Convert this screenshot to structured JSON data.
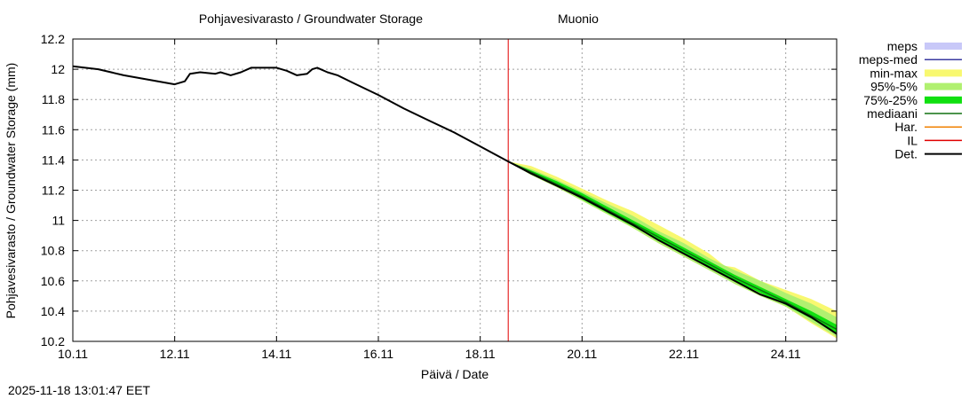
{
  "chart_data": {
    "type": "line",
    "title": "Pohjavesivarasto / Groundwater Storage",
    "location": "Muonio",
    "xlabel": "Päivä / Date",
    "ylabel": "Pohjavesivarasto / Groundwater Storage (mm)",
    "timestamp": "2025-11-18 13:01:47 EET",
    "xlim": [
      10.0,
      25.0
    ],
    "ylim": [
      10.2,
      12.2
    ],
    "x_ticks": [
      {
        "value": 10.0,
        "label": "10.11"
      },
      {
        "value": 12.0,
        "label": "12.11"
      },
      {
        "value": 14.0,
        "label": "14.11"
      },
      {
        "value": 16.0,
        "label": "16.11"
      },
      {
        "value": 18.0,
        "label": "18.11"
      },
      {
        "value": 20.0,
        "label": "20.11"
      },
      {
        "value": 22.0,
        "label": "22.11"
      },
      {
        "value": 24.0,
        "label": "24.11"
      }
    ],
    "y_ticks": [
      {
        "value": 10.2,
        "label": "10.2"
      },
      {
        "value": 10.4,
        "label": "10.4"
      },
      {
        "value": 10.6,
        "label": "10.6"
      },
      {
        "value": 10.8,
        "label": "10.8"
      },
      {
        "value": 11.0,
        "label": "11"
      },
      {
        "value": 11.2,
        "label": "11.2"
      },
      {
        "value": 11.4,
        "label": "11.4"
      },
      {
        "value": 11.6,
        "label": "11.6"
      },
      {
        "value": 11.8,
        "label": "11.8"
      },
      {
        "value": 12.0,
        "label": "12"
      },
      {
        "value": 12.2,
        "label": "12.2"
      }
    ],
    "grid": true,
    "legend_position": "right",
    "legend": [
      {
        "label": "meps",
        "color": "#c8c8f8",
        "style": "band"
      },
      {
        "label": "meps-med",
        "color": "#3a3aa0",
        "style": "line"
      },
      {
        "label": "min-max",
        "color": "#f8f870",
        "style": "band"
      },
      {
        "label": "95%-5%",
        "color": "#b0f070",
        "style": "band"
      },
      {
        "label": "75%-25%",
        "color": "#10e010",
        "style": "band"
      },
      {
        "label": "mediaani",
        "color": "#107010",
        "style": "line"
      },
      {
        "label": "Har.",
        "color": "#f08000",
        "style": "line"
      },
      {
        "label": "IL",
        "color": "#e00000",
        "style": "line"
      },
      {
        "label": "Det.",
        "color": "#000000",
        "style": "line"
      }
    ],
    "forecast_start": 18.55,
    "series": [
      {
        "name": "Det.",
        "color": "#000000",
        "x": [
          10.0,
          10.5,
          11.0,
          11.5,
          12.0,
          12.2,
          12.3,
          12.5,
          12.8,
          12.9,
          13.1,
          13.3,
          13.5,
          13.7,
          14.0,
          14.2,
          14.4,
          14.6,
          14.7,
          14.8,
          15.0,
          15.2,
          15.5,
          16.0,
          16.5,
          17.0,
          17.5,
          18.0,
          18.55,
          19.0,
          19.5,
          20.0,
          20.5,
          21.0,
          21.5,
          22.0,
          22.5,
          23.0,
          23.5,
          24.0,
          24.5,
          25.0
        ],
        "y": [
          12.02,
          12.0,
          11.96,
          11.93,
          11.9,
          11.92,
          11.97,
          11.98,
          11.97,
          11.98,
          11.96,
          11.98,
          12.01,
          12.01,
          12.01,
          11.99,
          11.96,
          11.97,
          12.0,
          12.01,
          11.98,
          11.96,
          11.91,
          11.83,
          11.74,
          11.66,
          11.58,
          11.49,
          11.39,
          11.31,
          11.23,
          11.15,
          11.06,
          10.97,
          10.87,
          10.78,
          10.69,
          10.6,
          10.51,
          10.45,
          10.36,
          10.25
        ]
      },
      {
        "name": "mediaani",
        "color": "#107010",
        "x": [
          18.55,
          19.0,
          19.5,
          20.0,
          20.5,
          21.0,
          21.5,
          22.0,
          22.5,
          23.0,
          23.5,
          24.0,
          24.5,
          25.0
        ],
        "y": [
          11.39,
          11.32,
          11.24,
          11.16,
          11.07,
          10.98,
          10.89,
          10.8,
          10.71,
          10.62,
          10.54,
          10.46,
          10.37,
          10.28
        ]
      },
      {
        "name": "min-max",
        "color": "#f8f870",
        "x": [
          18.55,
          19.0,
          19.5,
          20.0,
          20.5,
          21.0,
          21.5,
          22.0,
          22.5,
          22.8,
          23.0,
          23.5,
          24.0,
          24.5,
          25.0
        ],
        "upper": [
          11.39,
          11.36,
          11.29,
          11.21,
          11.13,
          11.06,
          10.97,
          10.88,
          10.78,
          10.7,
          10.69,
          10.6,
          10.54,
          10.48,
          10.4
        ],
        "lower": [
          11.39,
          11.3,
          11.22,
          11.13,
          11.04,
          10.95,
          10.85,
          10.76,
          10.67,
          10.62,
          10.58,
          10.5,
          10.43,
          10.32,
          10.22
        ]
      },
      {
        "name": "95%-5%",
        "color": "#b0f070",
        "x": [
          18.55,
          19.0,
          19.5,
          20.0,
          20.5,
          21.0,
          21.5,
          22.0,
          22.5,
          23.0,
          23.5,
          24.0,
          24.5,
          25.0
        ],
        "upper": [
          11.39,
          11.34,
          11.27,
          11.19,
          11.11,
          11.03,
          10.93,
          10.85,
          10.75,
          10.67,
          10.6,
          10.52,
          10.45,
          10.36
        ],
        "lower": [
          11.39,
          11.3,
          11.22,
          11.13,
          11.04,
          10.95,
          10.85,
          10.76,
          10.67,
          10.58,
          10.5,
          10.43,
          10.33,
          10.23
        ]
      },
      {
        "name": "75%-25%",
        "color": "#10e010",
        "x": [
          18.55,
          19.0,
          19.5,
          20.0,
          20.5,
          21.0,
          21.5,
          22.0,
          22.5,
          23.0,
          23.5,
          24.0,
          24.5,
          25.0
        ],
        "upper": [
          11.39,
          11.33,
          11.26,
          11.18,
          11.09,
          11.0,
          10.91,
          10.82,
          10.73,
          10.64,
          10.56,
          10.48,
          10.4,
          10.31
        ],
        "lower": [
          11.39,
          11.31,
          11.23,
          11.14,
          11.05,
          10.96,
          10.87,
          10.78,
          10.69,
          10.6,
          10.52,
          10.44,
          10.35,
          10.25
        ]
      }
    ]
  }
}
